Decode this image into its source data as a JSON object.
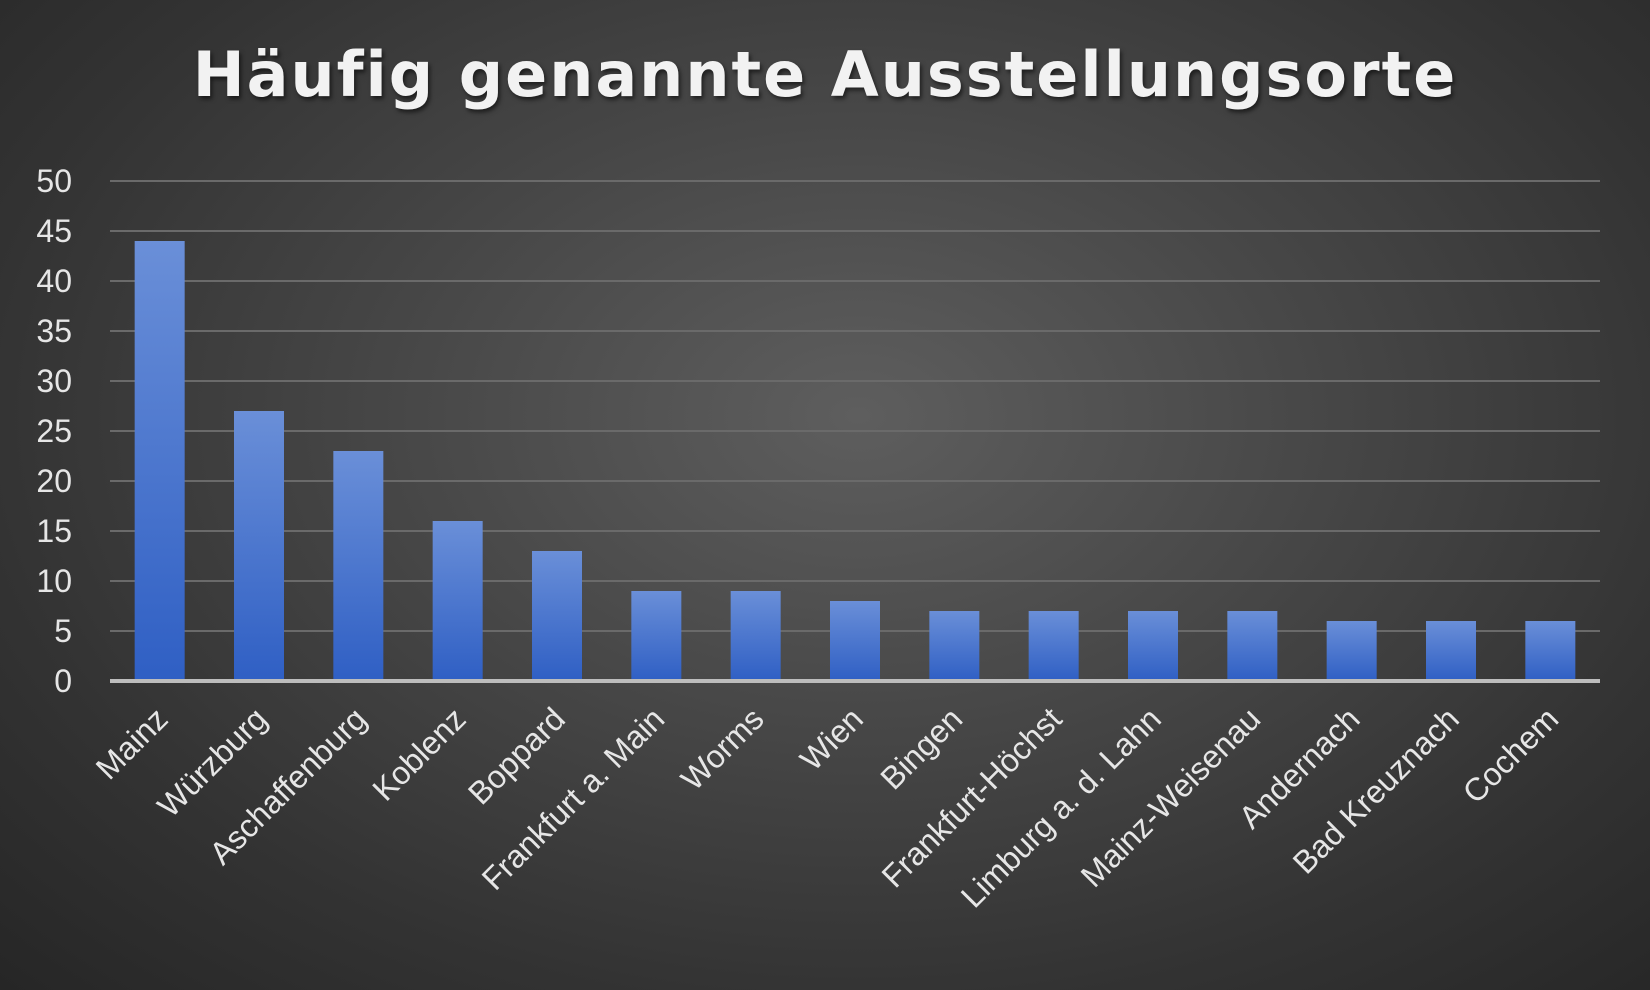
{
  "chart_data": {
    "type": "bar",
    "title": "Häufig genannte Ausstellungsorte",
    "xlabel": "",
    "ylabel": "",
    "categories": [
      "Mainz",
      "Würzburg",
      "Aschaffenburg",
      "Koblenz",
      "Boppard",
      "Frankfurt a. Main",
      "Worms",
      "Wien",
      "Bingen",
      "Frankfurt-Höchst",
      "Limburg a. d. Lahn",
      "Mainz-Weisenau",
      "Andernach",
      "Bad Kreuznach",
      "Cochem"
    ],
    "values": [
      44,
      27,
      23,
      16,
      13,
      9,
      9,
      8,
      7,
      7,
      7,
      7,
      6,
      6,
      6
    ],
    "ylim": [
      0,
      50
    ],
    "yticks": [
      0,
      5,
      10,
      15,
      20,
      25,
      30,
      35,
      40,
      45,
      50
    ],
    "grid": true,
    "legend": "none",
    "colors": {
      "bar_top": "#6a8fd8",
      "bar_bottom": "#2f5fc4",
      "background": "#474747",
      "text": "#e6e6e6"
    }
  }
}
